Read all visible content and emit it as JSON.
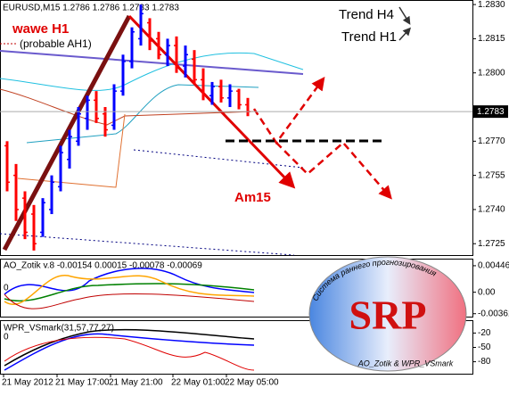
{
  "chart_data": {
    "type": "ohlc",
    "title": "EURUSD,M15  1.2786 1.2786 1.2783 1.2783",
    "categories": [
      "21 May 2012",
      null,
      null,
      null,
      null,
      null,
      "21 May 17:00",
      null,
      null,
      null,
      null,
      null,
      "21 May 21:00",
      null,
      null,
      null,
      null,
      null,
      null,
      "22 May 01:00",
      null,
      null,
      null,
      null,
      null,
      "22 May 05:00",
      null,
      null
    ],
    "open": [
      1.2768,
      1.2755,
      1.2745,
      1.2738,
      1.273,
      1.274,
      1.275,
      1.2762,
      1.277,
      1.278,
      1.2788,
      1.2782,
      1.2777,
      1.2792,
      1.2805,
      1.2815,
      1.2822,
      1.2815,
      1.2808,
      1.2812,
      1.2803,
      1.2806,
      1.2797,
      1.279,
      1.2794,
      1.2789,
      1.2792,
      1.2786
    ],
    "high": [
      1.277,
      1.276,
      1.2748,
      1.2742,
      1.2745,
      1.2755,
      1.2768,
      1.2775,
      1.2785,
      1.279,
      1.2792,
      1.2785,
      1.2795,
      1.2808,
      1.282,
      1.283,
      1.2824,
      1.2818,
      1.2815,
      1.2816,
      1.2812,
      1.281,
      1.2802,
      1.2796,
      1.2797,
      1.2795,
      1.2793,
      1.2789
    ],
    "low": [
      1.2748,
      1.2735,
      1.2727,
      1.2722,
      1.2728,
      1.2738,
      1.2748,
      1.2758,
      1.2768,
      1.2775,
      1.2778,
      1.2772,
      1.2775,
      1.279,
      1.2802,
      1.2812,
      1.281,
      1.2806,
      1.2803,
      1.28,
      1.2798,
      1.2795,
      1.2788,
      1.2786,
      1.2787,
      1.2785,
      1.2784,
      1.2781
    ],
    "close": [
      1.2752,
      1.274,
      1.273,
      1.2725,
      1.2743,
      1.2752,
      1.2765,
      1.2772,
      1.2782,
      1.2788,
      1.278,
      1.2775,
      1.2792,
      1.2805,
      1.2818,
      1.2826,
      1.2814,
      1.2808,
      1.2812,
      1.2803,
      1.2808,
      1.2797,
      1.279,
      1.2794,
      1.2789,
      1.2792,
      1.2786,
      1.2783
    ],
    "up_color": "#0000ff",
    "down_color": "#ff0000",
    "ylim": [
      1.272,
      1.2832
    ],
    "yticks": [
      {
        "value": 1.283,
        "label": "1.2830"
      },
      1.2815,
      {
        "value": 1.28,
        "label": "1.2800"
      },
      {
        "value": 1.277,
        "label": "1.2770"
      },
      1.2755,
      {
        "value": 1.274,
        "label": "1.2740"
      },
      1.2725
    ],
    "last_price": 1.2783,
    "annotations": {
      "wave": "wawe H1",
      "probable": "(probable AH1)",
      "am15": "Am15",
      "trend_h4": "Trend H4",
      "trend_h1": "Trend H1"
    },
    "ao_panel": {
      "title": "AO_Zotik v.8 -0.00154 0.00015 -0.00078 -0.00069",
      "level_label": "0",
      "ylim": [
        -0.0041,
        0.0055
      ],
      "yticks": [
        0.00446,
        {
          "value": 0,
          "label": "0.00"
        },
        -0.00361
      ]
    },
    "wpr_panel": {
      "title": "WPR_VSmark(31,57,77,27)",
      "level_label": "0",
      "ylim": [
        -105,
        5
      ],
      "yticks": [
        -20,
        -50,
        -80
      ]
    },
    "logo": {
      "ring_text": "Система раннего прогнозирования",
      "name": "SRP",
      "caption": "AO_Zotik & WPR_VSmark"
    }
  }
}
